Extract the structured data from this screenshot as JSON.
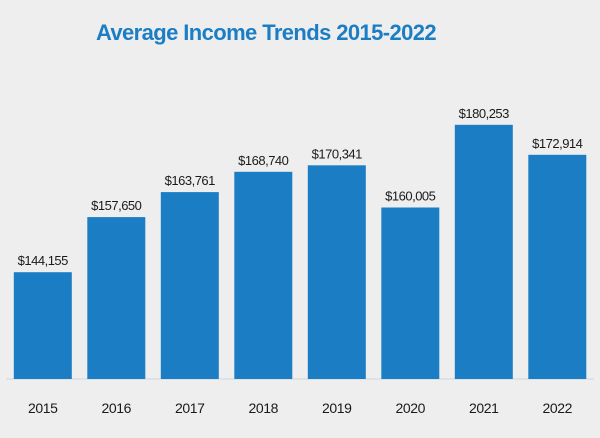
{
  "colors": {
    "bar": "#1b7ec5",
    "title": "#1b7ec5",
    "background": "#eeeeef",
    "text": "#1a1a1a"
  },
  "chart_data": {
    "type": "bar",
    "title": "Average Income Trends 2015-2022",
    "xlabel": "",
    "ylabel": "",
    "categories": [
      "2015",
      "2016",
      "2017",
      "2018",
      "2019",
      "2020",
      "2021",
      "2022"
    ],
    "values": [
      144155,
      157650,
      163761,
      168740,
      170341,
      160005,
      180253,
      172914
    ],
    "data_labels": [
      "$144,155",
      "$157,650",
      "$163,761",
      "$168,740",
      "$170,341",
      "$160,005",
      "$180,253",
      "$172,914"
    ],
    "ylim": [
      118000,
      190000
    ],
    "grid": false,
    "legend": "none"
  }
}
